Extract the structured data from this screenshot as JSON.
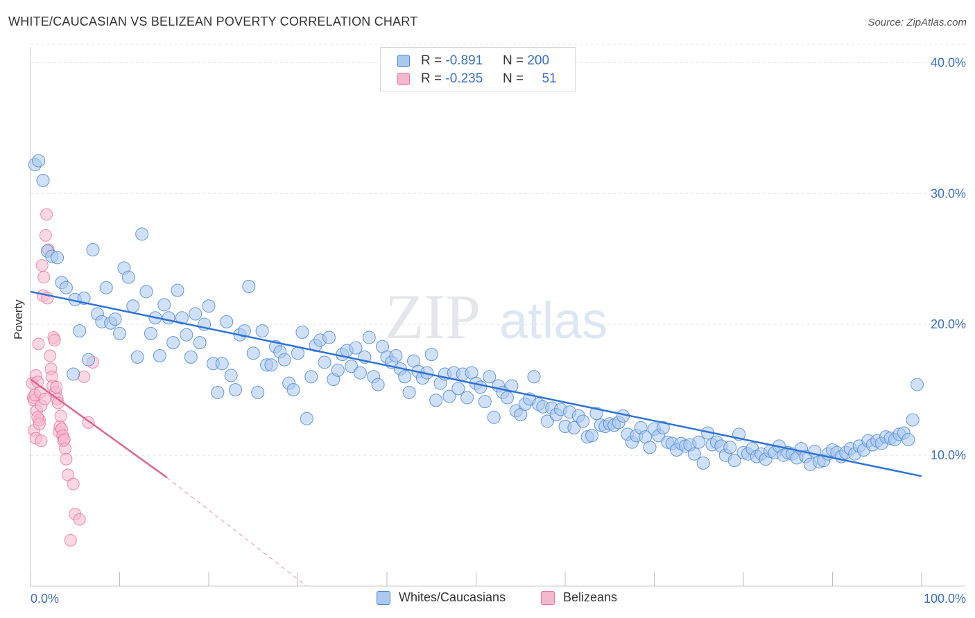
{
  "title": "WHITE/CAUCASIAN VS BELIZEAN POVERTY CORRELATION CHART",
  "source": "Source: ZipAtlas.com",
  "watermark": {
    "part1": "ZIP",
    "part2": "atlas"
  },
  "colors": {
    "blue": "#4a86d8",
    "blue_fill": "#aac8f0",
    "pink": "#e8709a",
    "pink_fill": "#f5b8cc",
    "axis_text": "#3a6ec8"
  },
  "legend": {
    "rows": [
      {
        "r_label": "R = ",
        "r_value": "-0.891",
        "n_label": "N = ",
        "n_value": "200"
      },
      {
        "r_label": "R = ",
        "r_value": "-0.235",
        "n_label": "N = ",
        "n_value": "51"
      }
    ]
  },
  "bottom_legend": {
    "series1": "Whites/Caucasians",
    "series2": "Belizeans"
  },
  "chart_data": {
    "type": "scatter",
    "title": "WHITE/CAUCASIAN VS BELIZEAN POVERTY CORRELATION CHART",
    "xlabel": "",
    "ylabel": "Poverty",
    "x_tick_labels": [
      "0.0%",
      "100.0%"
    ],
    "y_tick_labels": [
      "10.0%",
      "20.0%",
      "30.0%",
      "40.0%"
    ],
    "xlim": [
      0,
      100
    ],
    "ylim": [
      0,
      41.5
    ],
    "y_ticks": [
      10,
      20,
      30,
      40
    ],
    "grid": true,
    "series": [
      {
        "name": "Whites/Caucasians",
        "color": "#4a86d8",
        "trend": {
          "x": [
            0,
            100
          ],
          "y": [
            22.5,
            8.4
          ]
        },
        "points": [
          [
            0.5,
            32.2
          ],
          [
            0.9,
            32.5
          ],
          [
            1.4,
            31.0
          ],
          [
            1.9,
            25.6
          ],
          [
            2.4,
            25.2
          ],
          [
            3.0,
            25.1
          ],
          [
            3.5,
            23.2
          ],
          [
            4.0,
            22.8
          ],
          [
            4.8,
            16.2
          ],
          [
            5.0,
            21.9
          ],
          [
            5.5,
            19.5
          ],
          [
            6.0,
            22.0
          ],
          [
            6.5,
            17.3
          ],
          [
            7.0,
            25.7
          ],
          [
            7.5,
            20.8
          ],
          [
            8.0,
            20.2
          ],
          [
            8.5,
            22.8
          ],
          [
            9.0,
            20.1
          ],
          [
            9.5,
            20.4
          ],
          [
            10.0,
            19.3
          ],
          [
            10.5,
            24.3
          ],
          [
            11.0,
            23.6
          ],
          [
            11.5,
            21.4
          ],
          [
            12.0,
            17.5
          ],
          [
            12.5,
            26.9
          ],
          [
            13.0,
            22.5
          ],
          [
            13.5,
            19.3
          ],
          [
            14.0,
            20.5
          ],
          [
            14.5,
            17.6
          ],
          [
            15.0,
            21.5
          ],
          [
            15.5,
            20.5
          ],
          [
            16.0,
            18.6
          ],
          [
            16.5,
            22.6
          ],
          [
            17.0,
            20.5
          ],
          [
            17.5,
            19.2
          ],
          [
            18.0,
            17.5
          ],
          [
            18.5,
            20.8
          ],
          [
            19.0,
            18.6
          ],
          [
            19.5,
            20.0
          ],
          [
            20.0,
            21.4
          ],
          [
            20.5,
            17.0
          ],
          [
            21.0,
            14.8
          ],
          [
            21.5,
            17.0
          ],
          [
            22.0,
            20.2
          ],
          [
            22.5,
            16.1
          ],
          [
            23.0,
            15.0
          ],
          [
            23.5,
            19.2
          ],
          [
            24.0,
            19.5
          ],
          [
            24.5,
            22.9
          ],
          [
            25.0,
            17.8
          ],
          [
            25.5,
            14.8
          ],
          [
            26.0,
            19.5
          ],
          [
            26.5,
            16.9
          ],
          [
            27.0,
            16.9
          ],
          [
            27.5,
            18.3
          ],
          [
            28.0,
            17.9
          ],
          [
            28.5,
            17.3
          ],
          [
            29.0,
            15.5
          ],
          [
            29.5,
            15.0
          ],
          [
            30.0,
            17.8
          ],
          [
            30.5,
            19.4
          ],
          [
            31.0,
            12.8
          ],
          [
            31.5,
            16.0
          ],
          [
            32.0,
            18.4
          ],
          [
            32.5,
            18.8
          ],
          [
            33.0,
            17.1
          ],
          [
            33.5,
            19.0
          ],
          [
            34.0,
            15.8
          ],
          [
            34.5,
            16.5
          ],
          [
            35.0,
            17.7
          ],
          [
            35.5,
            18.0
          ],
          [
            36.0,
            16.8
          ],
          [
            36.5,
            18.2
          ],
          [
            37.0,
            16.3
          ],
          [
            37.5,
            17.5
          ],
          [
            38.0,
            19.0
          ],
          [
            38.5,
            16.0
          ],
          [
            39.0,
            15.4
          ],
          [
            39.5,
            18.3
          ],
          [
            40.0,
            17.5
          ],
          [
            40.5,
            17.1
          ],
          [
            41.0,
            17.6
          ],
          [
            41.5,
            16.6
          ],
          [
            42.0,
            16.0
          ],
          [
            42.5,
            14.8
          ],
          [
            43.0,
            17.2
          ],
          [
            43.5,
            16.4
          ],
          [
            44.0,
            15.9
          ],
          [
            44.5,
            16.3
          ],
          [
            45.0,
            17.7
          ],
          [
            45.5,
            14.2
          ],
          [
            46.0,
            15.5
          ],
          [
            46.5,
            16.2
          ],
          [
            47.0,
            14.5
          ],
          [
            47.5,
            16.3
          ],
          [
            48.0,
            15.1
          ],
          [
            48.5,
            16.2
          ],
          [
            49.0,
            14.4
          ],
          [
            49.5,
            16.3
          ],
          [
            50.0,
            15.5
          ],
          [
            50.5,
            15.2
          ],
          [
            51.0,
            14.1
          ],
          [
            51.5,
            16.0
          ],
          [
            52.0,
            12.9
          ],
          [
            52.5,
            15.3
          ],
          [
            53.0,
            14.8
          ],
          [
            53.5,
            14.4
          ],
          [
            54.0,
            15.3
          ],
          [
            54.5,
            13.4
          ],
          [
            55.0,
            13.1
          ],
          [
            55.5,
            13.9
          ],
          [
            56.0,
            14.3
          ],
          [
            56.5,
            16.0
          ],
          [
            57.0,
            13.9
          ],
          [
            57.5,
            13.7
          ],
          [
            58.0,
            12.6
          ],
          [
            58.5,
            13.6
          ],
          [
            59.0,
            13.1
          ],
          [
            59.5,
            13.5
          ],
          [
            60.0,
            12.2
          ],
          [
            60.5,
            13.3
          ],
          [
            61.0,
            12.1
          ],
          [
            61.5,
            13.0
          ],
          [
            62.0,
            12.6
          ],
          [
            62.5,
            11.4
          ],
          [
            63.0,
            11.5
          ],
          [
            63.5,
            13.2
          ],
          [
            64.0,
            12.3
          ],
          [
            64.5,
            12.2
          ],
          [
            65.0,
            12.4
          ],
          [
            65.5,
            12.3
          ],
          [
            66.0,
            12.5
          ],
          [
            66.5,
            13.0
          ],
          [
            67.0,
            11.6
          ],
          [
            67.5,
            11.0
          ],
          [
            68.0,
            11.5
          ],
          [
            68.5,
            12.1
          ],
          [
            69.0,
            11.4
          ],
          [
            69.5,
            10.6
          ],
          [
            70.0,
            12.0
          ],
          [
            70.5,
            11.5
          ],
          [
            71.0,
            12.1
          ],
          [
            71.5,
            11.0
          ],
          [
            72.0,
            10.9
          ],
          [
            72.5,
            10.4
          ],
          [
            73.0,
            10.9
          ],
          [
            73.5,
            10.7
          ],
          [
            74.0,
            10.8
          ],
          [
            74.5,
            10.1
          ],
          [
            75.0,
            11.0
          ],
          [
            75.5,
            9.4
          ],
          [
            76.0,
            11.7
          ],
          [
            76.5,
            10.8
          ],
          [
            77.0,
            11.0
          ],
          [
            77.5,
            10.7
          ],
          [
            78.0,
            10.0
          ],
          [
            78.5,
            10.6
          ],
          [
            79.0,
            9.6
          ],
          [
            79.5,
            11.6
          ],
          [
            80.0,
            10.2
          ],
          [
            80.5,
            10.1
          ],
          [
            81.0,
            10.5
          ],
          [
            81.5,
            9.9
          ],
          [
            82.0,
            10.1
          ],
          [
            82.5,
            9.7
          ],
          [
            83.0,
            10.3
          ],
          [
            83.5,
            10.2
          ],
          [
            84.0,
            10.7
          ],
          [
            84.5,
            10.0
          ],
          [
            85.0,
            10.2
          ],
          [
            85.5,
            10.1
          ],
          [
            86.0,
            9.8
          ],
          [
            86.5,
            10.5
          ],
          [
            87.0,
            9.9
          ],
          [
            87.5,
            9.3
          ],
          [
            88.0,
            10.3
          ],
          [
            88.5,
            9.5
          ],
          [
            89.0,
            9.6
          ],
          [
            89.5,
            10.1
          ],
          [
            90.0,
            10.4
          ],
          [
            90.5,
            10.2
          ],
          [
            91.0,
            9.9
          ],
          [
            91.5,
            10.2
          ],
          [
            92.0,
            10.5
          ],
          [
            92.5,
            10.1
          ],
          [
            93.0,
            10.7
          ],
          [
            93.5,
            10.4
          ],
          [
            94.0,
            11.1
          ],
          [
            94.5,
            10.8
          ],
          [
            95.0,
            11.1
          ],
          [
            95.5,
            10.9
          ],
          [
            96.0,
            11.4
          ],
          [
            96.5,
            11.3
          ],
          [
            97.0,
            11.2
          ],
          [
            97.5,
            11.6
          ],
          [
            98.0,
            11.7
          ],
          [
            98.5,
            11.2
          ],
          [
            99.0,
            12.7
          ],
          [
            99.5,
            15.4
          ]
        ]
      },
      {
        "name": "Belizeans",
        "color": "#e8709a",
        "trend": {
          "x": [
            0,
            15.3
          ],
          "y": [
            15.8,
            8.3
          ]
        },
        "trend_dashed": {
          "x": [
            15.3,
            31.0
          ],
          "y": [
            8.3,
            0
          ]
        },
        "points": [
          [
            0.2,
            15.5
          ],
          [
            0.3,
            14.4
          ],
          [
            0.4,
            14.2
          ],
          [
            0.5,
            14.6
          ],
          [
            0.6,
            16.1
          ],
          [
            0.7,
            13.4
          ],
          [
            0.8,
            15.6
          ],
          [
            0.9,
            18.5
          ],
          [
            1.0,
            12.7
          ],
          [
            1.1,
            14.8
          ],
          [
            1.2,
            13.8
          ],
          [
            1.3,
            24.5
          ],
          [
            1.4,
            22.2
          ],
          [
            1.5,
            23.6
          ],
          [
            1.6,
            14.3
          ],
          [
            1.7,
            26.8
          ],
          [
            1.8,
            28.4
          ],
          [
            1.9,
            22.0
          ],
          [
            2.0,
            25.7
          ],
          [
            2.2,
            17.6
          ],
          [
            2.3,
            16.6
          ],
          [
            2.4,
            16.0
          ],
          [
            2.5,
            15.3
          ],
          [
            2.6,
            19.0
          ],
          [
            2.7,
            18.8
          ],
          [
            2.8,
            14.8
          ],
          [
            2.9,
            15.2
          ],
          [
            3.0,
            14.3
          ],
          [
            3.1,
            14.0
          ],
          [
            3.2,
            11.8
          ],
          [
            3.3,
            12.2
          ],
          [
            3.4,
            13.0
          ],
          [
            3.5,
            12.0
          ],
          [
            3.6,
            11.5
          ],
          [
            3.7,
            11.1
          ],
          [
            3.8,
            11.2
          ],
          [
            3.9,
            10.5
          ],
          [
            4.0,
            9.7
          ],
          [
            4.2,
            8.5
          ],
          [
            4.5,
            3.5
          ],
          [
            4.8,
            7.8
          ],
          [
            5.0,
            5.5
          ],
          [
            5.5,
            5.1
          ],
          [
            6.0,
            16.0
          ],
          [
            6.5,
            12.5
          ],
          [
            7.0,
            17.1
          ],
          [
            0.4,
            11.9
          ],
          [
            0.6,
            11.3
          ],
          [
            0.8,
            12.9
          ],
          [
            1.0,
            12.4
          ],
          [
            1.2,
            11.1
          ]
        ]
      }
    ]
  }
}
